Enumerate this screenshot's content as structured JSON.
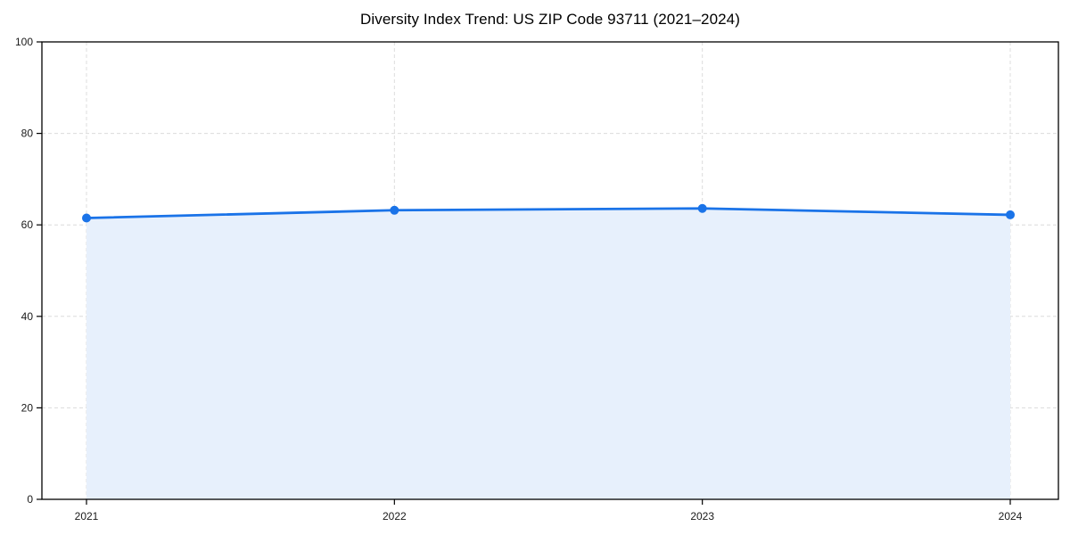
{
  "chart_data": {
    "type": "line",
    "title": "Diversity Index Trend: US ZIP Code 93711 (2021–2024)",
    "categories": [
      "2021",
      "2022",
      "2023",
      "2024"
    ],
    "values": [
      61.5,
      63.2,
      63.6,
      62.2
    ],
    "xlabel": "",
    "ylabel": "",
    "ylim": [
      0,
      100
    ],
    "yticks": [
      0,
      20,
      40,
      60,
      80,
      100
    ],
    "grid": "dashed",
    "legend_position": "none",
    "area_fill": true,
    "marker": "circle",
    "colors": {
      "line": "#1a73e8",
      "marker": "#1a73e8",
      "fill": "#e7f0fc",
      "grid": "#dcdcdc",
      "axis": "#000000",
      "tick_label": "#1a1a1a",
      "title": "#000000",
      "background": "#ffffff"
    }
  }
}
